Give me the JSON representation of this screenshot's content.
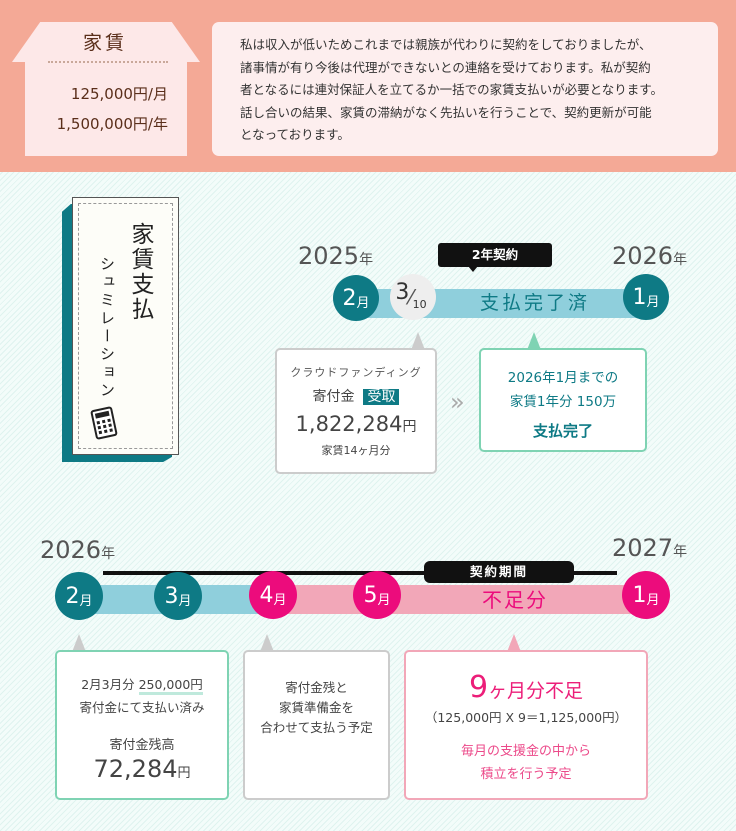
{
  "rent": {
    "title": "家賃",
    "monthly": "125,000円/月",
    "yearly": "1,500,000円/年"
  },
  "message": [
    "私は収入が低いためこれまでは親族が代わりに契約をしておりましたが、",
    "諸事情が有り今後は代理ができないとの連絡を受けております。私が契約",
    "者となるには連対保証人を立てるか一括での家賃支払いが必要となります。",
    "話し合いの結果、家賃の滞納がなく先払いを行うことで、契約更新が可能",
    "となっております。"
  ],
  "card": {
    "title": "家賃支払",
    "subtitle": "シュミレーション",
    "icon": "calculator-icon"
  },
  "colors": {
    "teal": "#0e7a85",
    "light_blue": "#8fcfdc",
    "pink": "#ec0c7c",
    "pink_bar": "#f2a7b8",
    "green_border": "#7fd3b3",
    "top_bg": "#f4a996"
  },
  "timeline1": {
    "start_year": "2025",
    "end_year": "2026",
    "year_suffix": "年",
    "start_month": "2",
    "end_month": "1",
    "month_suffix": "月",
    "date_num": "3",
    "date_den": "10",
    "contract_tag": "2年契約",
    "bar_label": "支払完了済",
    "left_box": {
      "line1": "クラウドファンディング",
      "line2": "寄付金",
      "badge": "受取",
      "amount": "1,822,284",
      "yen": "円",
      "note": "家賃14ヶ月分"
    },
    "arrow": "»",
    "right_box": {
      "line1": "2026年1月までの",
      "line2": "家賃1年分 150万",
      "status": "支払完了"
    }
  },
  "timeline2": {
    "start_year": "2026",
    "end_year": "2027",
    "year_suffix": "年",
    "months": [
      "2",
      "3",
      "4",
      "5",
      "1"
    ],
    "month_suffix": "月",
    "contract_tag": "契約期間",
    "bar_label": "不足分",
    "box1": {
      "line1a": "2月3月分 ",
      "line1b": "250,000円",
      "line2": "寄付金にて支払い済み",
      "label": "寄付金残高",
      "amount": "72,284",
      "yen": "円"
    },
    "box2": {
      "lines": [
        "寄付金残と",
        "家賃準備金を",
        "合わせて支払う予定"
      ]
    },
    "box3": {
      "big_num": "9",
      "big_rest": "ヶ月分不足",
      "calc": "（125,000円 X 9＝1,125,000円）",
      "line1": "毎月の支援金の中から",
      "line2": "積立を行う予定"
    }
  }
}
